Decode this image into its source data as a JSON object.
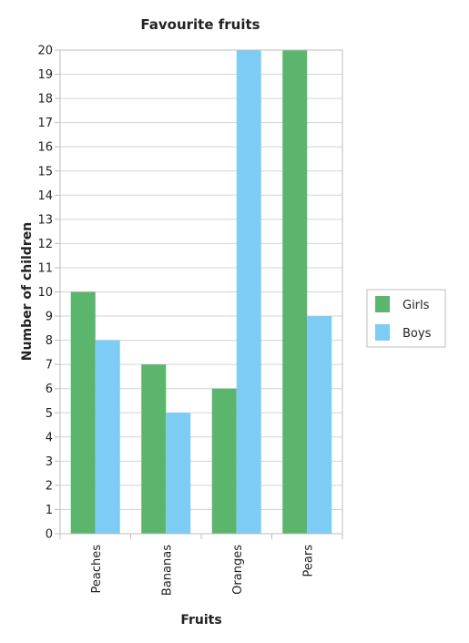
{
  "chart_data": {
    "type": "bar",
    "title": "Favourite fruits",
    "xlabel": "Fruits",
    "ylabel": "Number of children",
    "categories": [
      "Peaches",
      "Bananas",
      "Oranges",
      "Pears"
    ],
    "series": [
      {
        "name": "Girls",
        "values": [
          10,
          7,
          6,
          20
        ],
        "color": "#5cb56c"
      },
      {
        "name": "Boys",
        "values": [
          8,
          5,
          20,
          9
        ],
        "color": "#7dccf5"
      }
    ],
    "ylim": [
      0,
      20
    ],
    "yticks": [
      0,
      1,
      2,
      3,
      4,
      5,
      6,
      7,
      8,
      9,
      10,
      11,
      12,
      13,
      14,
      15,
      16,
      17,
      18,
      19,
      20
    ],
    "grid": true,
    "legend_position": "right"
  }
}
